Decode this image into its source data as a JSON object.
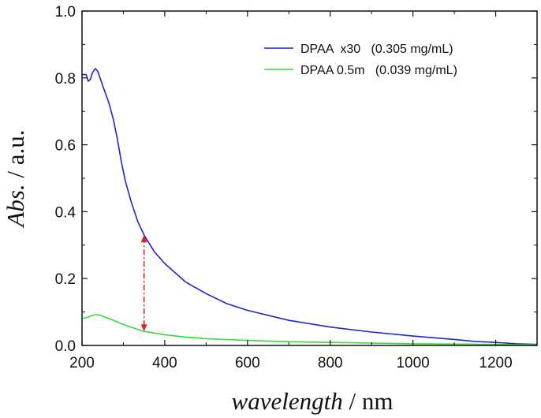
{
  "chart_data": {
    "type": "line",
    "title": "",
    "xlabel_main": "wavelength",
    "xlabel_unit": " / nm",
    "ylabel_main": "Abs.",
    "ylabel_unit": " / a.u.",
    "xlim": [
      200,
      1300
    ],
    "ylim": [
      0.0,
      1.0
    ],
    "x_ticks": [
      200,
      400,
      600,
      800,
      1000,
      1200
    ],
    "x_tick_labels": [
      "200",
      "400",
      "600",
      "800",
      "1000",
      "1200"
    ],
    "y_ticks": [
      0.0,
      0.2,
      0.4,
      0.6,
      0.8,
      1.0
    ],
    "y_tick_labels": [
      "0.0",
      "0.2",
      "0.4",
      "0.6",
      "0.8",
      "1.0"
    ],
    "grid": false,
    "legend_position": "top-right",
    "series": [
      {
        "name": "DPAA  x30   (0.305 mg/mL)",
        "color": "#2323c8",
        "x": [
          200,
          210,
          215,
          220,
          225,
          232,
          238,
          245,
          255,
          265,
          275,
          285,
          295,
          305,
          320,
          335,
          350,
          375,
          400,
          450,
          500,
          550,
          600,
          700,
          800,
          900,
          1000,
          1100,
          1150,
          1200,
          1250,
          1300
        ],
        "y": [
          0.81,
          0.81,
          0.79,
          0.795,
          0.815,
          0.828,
          0.82,
          0.795,
          0.76,
          0.725,
          0.68,
          0.62,
          0.55,
          0.49,
          0.425,
          0.37,
          0.33,
          0.28,
          0.245,
          0.19,
          0.155,
          0.125,
          0.105,
          0.075,
          0.055,
          0.04,
          0.028,
          0.018,
          0.012,
          0.009,
          0.005,
          0.003
        ]
      },
      {
        "name": "DPAA 0.5m   (0.039 mg/mL)",
        "color": "#33dd33",
        "x": [
          200,
          215,
          225,
          235,
          245,
          255,
          270,
          290,
          310,
          330,
          350,
          400,
          450,
          500,
          600,
          700,
          800,
          900,
          1000,
          1100,
          1200,
          1300
        ],
        "y": [
          0.08,
          0.085,
          0.09,
          0.092,
          0.09,
          0.085,
          0.078,
          0.068,
          0.058,
          0.05,
          0.042,
          0.032,
          0.025,
          0.02,
          0.015,
          0.011,
          0.009,
          0.007,
          0.005,
          0.004,
          0.003,
          0.002
        ]
      }
    ],
    "annotation": {
      "type": "double-arrow",
      "style": "dash-dot",
      "color": "#dd2222",
      "x": 350,
      "y_start": 0.042,
      "y_end": 0.33
    }
  }
}
